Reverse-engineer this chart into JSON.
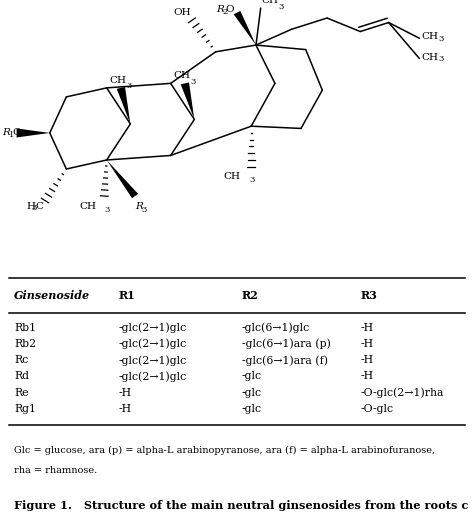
{
  "background_color": "#ffffff",
  "table_headers": [
    "Ginsenoside",
    "R1",
    "R2",
    "R3"
  ],
  "table_rows": [
    [
      "Rb1",
      "-glc(2→1)glc",
      "-glc(6→1)glc",
      "-H"
    ],
    [
      "Rb2",
      "-glc(2→1)glc",
      "-glc(6→1)ara (p)",
      "-H"
    ],
    [
      "Rc",
      "-glc(2→1)glc",
      "-glc(6→1)ara (f)",
      "-H"
    ],
    [
      "Rd",
      "-glc(2→1)glc",
      "-glc",
      "-H"
    ],
    [
      "Re",
      "-H",
      "-glc",
      "-O-glc(2→1)rha"
    ],
    [
      "Rg1",
      "-H",
      "-glc",
      "-O-glc"
    ]
  ],
  "footnote1": "Glc = glucose, ara (p) = alpha-L arabinopyranose, ara (f) = alpha-L arabinofuranose,",
  "footnote2": "rha = rhamnose.",
  "caption": "Figure 1.   Structure of the main neutral ginsenosides from the roots c"
}
